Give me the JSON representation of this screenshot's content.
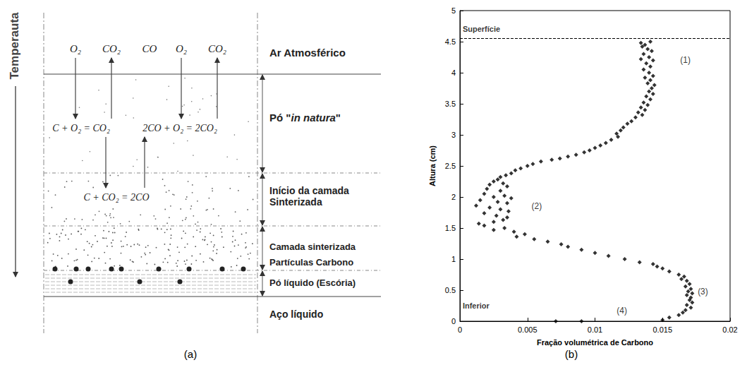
{
  "panel_labels": [
    "(a)",
    "(b)"
  ],
  "diagram": {
    "axis_label": "Temperauta",
    "gases": [
      "O₂",
      "CO₂",
      "CO",
      "O₂",
      "CO₂"
    ],
    "reactions": [
      "C + O₂ = CO₂",
      "2CO + O₂ = 2CO₂",
      "C + CO₂ = 2CO"
    ],
    "layers": [
      "Ar Atmosférico",
      "Pó \"in natura\"",
      "Início da camada Sinterizada",
      "Camada sinterizada",
      "Partículas Carbono",
      "Pó líquido (Escória)",
      "Aço líquido"
    ]
  },
  "chart_data": {
    "type": "scatter",
    "x_label": "Fração volumétrica de Carbono",
    "y_label": "Altura (cm)",
    "x": [
      0.0134,
      0.0137,
      0.0141,
      0.0135,
      0.0139,
      0.0142,
      0.0136,
      0.014,
      0.0134,
      0.0143,
      0.0138,
      0.0141,
      0.0136,
      0.014,
      0.0143,
      0.0137,
      0.0141,
      0.0139,
      0.0144,
      0.0142,
      0.014,
      0.0143,
      0.0138,
      0.0141,
      0.0136,
      0.0139,
      0.0134,
      0.0137,
      0.0132,
      0.0135,
      0.013,
      0.0127,
      0.0124,
      0.0121,
      0.0119,
      0.0116,
      0.0117,
      0.0112,
      0.0108,
      0.0104,
      0.01,
      0.0096,
      0.0092,
      0.0086,
      0.008,
      0.0074,
      0.0068,
      0.006,
      0.0054,
      0.005,
      0.0045,
      0.0041,
      0.0038,
      0.0034,
      0.003,
      0.0028,
      0.0025,
      0.0032,
      0.0022,
      0.0035,
      0.002,
      0.003,
      0.0018,
      0.0033,
      0.0025,
      0.0038,
      0.0015,
      0.0028,
      0.0035,
      0.0012,
      0.0022,
      0.003,
      0.0036,
      0.0018,
      0.0027,
      0.0035,
      0.0032,
      0.0025,
      0.0014,
      0.0018,
      0.0033,
      0.0025,
      0.004,
      0.0048,
      0.0042,
      0.0055,
      0.0065,
      0.0075,
      0.008,
      0.009,
      0.01,
      0.011,
      0.0122,
      0.0133,
      0.0143,
      0.0146,
      0.015,
      0.0155,
      0.0162,
      0.0166,
      0.0164,
      0.0168,
      0.017,
      0.0167,
      0.0171,
      0.0169,
      0.0172,
      0.0168,
      0.0171,
      0.017,
      0.0172,
      0.0168,
      0.0171,
      0.0167,
      0.0165,
      0.0162,
      0.0155,
      0.015,
      0.009,
      0.0071
    ],
    "values": [
      4.48,
      4.45,
      4.5,
      4.42,
      4.38,
      4.35,
      4.3,
      4.25,
      4.22,
      4.2,
      4.15,
      4.1,
      4.05,
      4.0,
      3.95,
      3.92,
      3.88,
      3.83,
      3.8,
      3.75,
      3.7,
      3.66,
      3.62,
      3.57,
      3.52,
      3.48,
      3.44,
      3.4,
      3.36,
      3.32,
      3.28,
      3.22,
      3.18,
      3.12,
      3.07,
      3.02,
      2.97,
      2.92,
      2.87,
      2.83,
      2.79,
      2.75,
      2.72,
      2.68,
      2.65,
      2.62,
      2.6,
      2.57,
      2.53,
      2.5,
      2.46,
      2.43,
      2.38,
      2.35,
      2.32,
      2.28,
      2.25,
      2.22,
      2.2,
      2.17,
      2.13,
      2.1,
      2.05,
      2.02,
      2.0,
      1.98,
      1.95,
      1.92,
      1.9,
      1.86,
      1.83,
      1.8,
      1.77,
      1.74,
      1.7,
      1.67,
      1.63,
      1.6,
      1.57,
      1.54,
      1.5,
      1.47,
      1.44,
      1.4,
      1.36,
      1.32,
      1.28,
      1.24,
      1.2,
      1.15,
      1.1,
      1.05,
      1.0,
      0.95,
      0.92,
      0.88,
      0.85,
      0.8,
      0.75,
      0.72,
      0.68,
      0.65,
      0.6,
      0.56,
      0.52,
      0.48,
      0.45,
      0.42,
      0.38,
      0.34,
      0.3,
      0.26,
      0.22,
      0.18,
      0.14,
      0.1,
      0.06,
      0.02,
      0,
      0
    ],
    "color": "#000000",
    "marker": "diamond",
    "xlim": [
      0,
      0.02
    ],
    "ylim": [
      0,
      5
    ],
    "xticks": [
      0,
      0.005,
      0.01,
      0.015,
      0.02
    ],
    "yticks": [
      0,
      0.5,
      1,
      1.5,
      2,
      2.5,
      3,
      3.5,
      4,
      4.5,
      5
    ],
    "grid": false,
    "reference_line": {
      "y": 4.55,
      "line_style": "dashed"
    },
    "annotations": [
      {
        "text": "Superfície",
        "x": 0.0001,
        "y": 4.7
      },
      {
        "text": "Inferior",
        "x": 0.0001,
        "y": 0.25
      },
      {
        "text": "(1)",
        "x": 0.0162,
        "y": 4.2
      },
      {
        "text": "(2)",
        "x": 0.0052,
        "y": 1.85
      },
      {
        "text": "(3)",
        "x": 0.0175,
        "y": 0.48
      },
      {
        "text": "(4)",
        "x": 0.0115,
        "y": 0.17
      }
    ]
  }
}
